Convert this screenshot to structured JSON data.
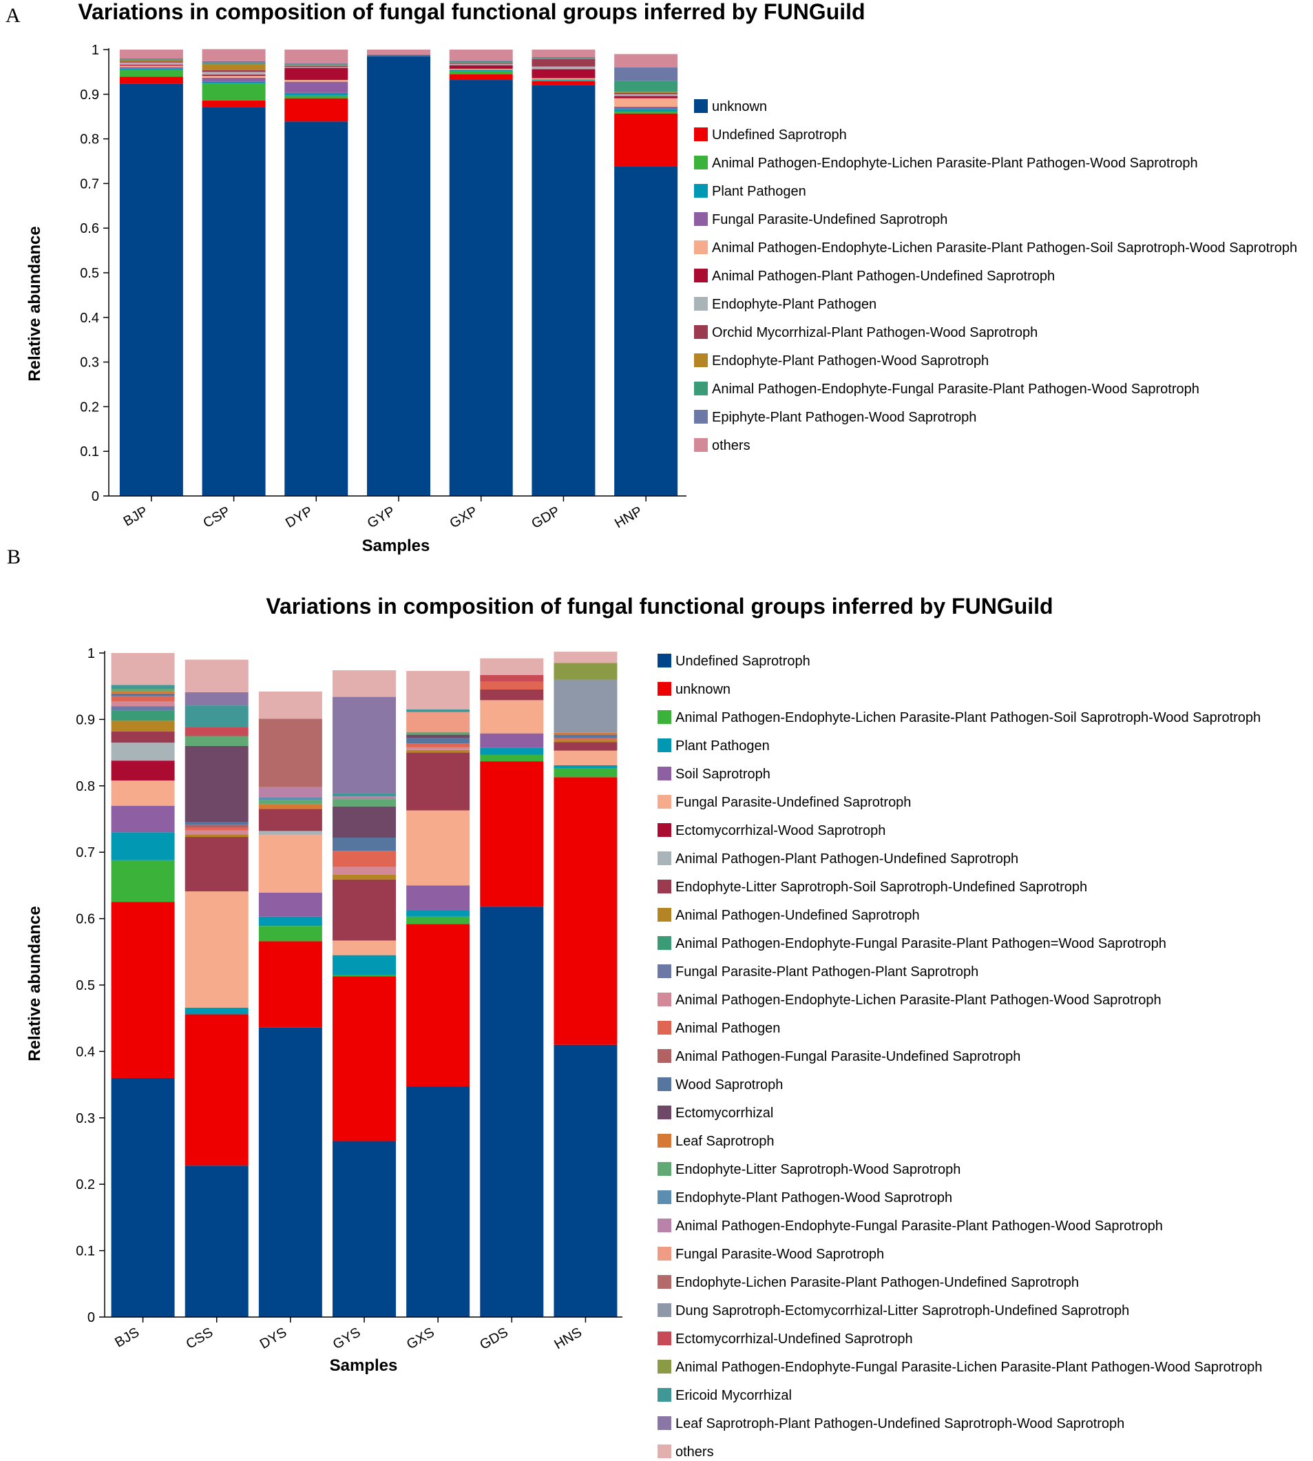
{
  "chart_data": [
    {
      "type": "bar",
      "stacked": true,
      "panel_label": "A",
      "title": "Variations in composition of fungal functional groups inferred by FUNGuild",
      "xlabel": "Samples",
      "ylabel": "Relative abundance",
      "ylim": [
        0,
        1
      ],
      "yticks": [
        "0",
        "0.1",
        "0.2",
        "0.3",
        "0.4",
        "0.5",
        "0.6",
        "0.7",
        "0.8",
        "0.9",
        "1"
      ],
      "categories": [
        "BJP",
        "CSP",
        "DYP",
        "GYP",
        "GXP",
        "GDP",
        "HNP"
      ],
      "legend_position": "right",
      "series": [
        {
          "name": "unknown",
          "color": "#00448a",
          "values": [
            0.924,
            0.871,
            0.839,
            0.985,
            0.932,
            0.921,
            0.739
          ]
        },
        {
          "name": "Undefined Saprotroph",
          "color": "#ee0000",
          "values": [
            0.015,
            0.015,
            0.052,
            0.0,
            0.013,
            0.008,
            0.118
          ]
        },
        {
          "name": "Animal Pathogen-Endophyte-Lichen Parasite-Plant Pathogen-Wood Saprotroph",
          "color": "#3bb33b",
          "values": [
            0.015,
            0.038,
            0.006,
            0.0,
            0.006,
            0.002,
            0.004
          ]
        },
        {
          "name": "Plant Pathogen",
          "color": "#0098b3",
          "values": [
            0.004,
            0.004,
            0.006,
            0.002,
            0.003,
            0.002,
            0.006
          ]
        },
        {
          "name": "Fungal Parasite-Undefined Saprotroph",
          "color": "#8e5fa2",
          "values": [
            0.003,
            0.009,
            0.025,
            0.0,
            0.001,
            0.0,
            0.005
          ]
        },
        {
          "name": "Animal Pathogen-Endophyte-Lichen Parasite-Plant Pathogen-Soil Saprotroph-Wood Saprotroph",
          "color": "#f6ac8c",
          "values": [
            0.003,
            0.004,
            0.004,
            0.0,
            0.002,
            0.003,
            0.019
          ]
        },
        {
          "name": "Animal Pathogen-Plant Pathogen-Undefined Saprotroph",
          "color": "#ab0a31",
          "values": [
            0.002,
            0.003,
            0.027,
            0.001,
            0.008,
            0.02,
            0.005
          ]
        },
        {
          "name": "Endophyte-Plant Pathogen",
          "color": "#a9b4b8",
          "values": [
            0.005,
            0.006,
            0.002,
            0.0,
            0.003,
            0.006,
            0.004
          ]
        },
        {
          "name": "Orchid Mycorrhizal-Plant Pathogen-Wood Saprotroph",
          "color": "#9c3a50",
          "values": [
            0.002,
            0.004,
            0.002,
            0.0,
            0.002,
            0.017,
            0.003
          ]
        },
        {
          "name": "Endophyte-Plant Pathogen-Wood Saprotroph",
          "color": "#b58423",
          "values": [
            0.003,
            0.014,
            0.002,
            0.0,
            0.001,
            0.001,
            0.003
          ]
        },
        {
          "name": "Animal Pathogen-Endophyte-Fungal Parasite-Plant Pathogen-Wood Saprotroph",
          "color": "#3a9b77",
          "values": [
            0.002,
            0.003,
            0.002,
            0.0,
            0.002,
            0.001,
            0.024
          ]
        },
        {
          "name": "Epiphyte-Plant Pathogen-Wood Saprotroph",
          "color": "#6c79a6",
          "values": [
            0.002,
            0.003,
            0.002,
            0.001,
            0.002,
            0.002,
            0.03
          ]
        },
        {
          "name": "others",
          "color": "#d48999",
          "values": [
            0.02,
            0.027,
            0.031,
            0.011,
            0.025,
            0.017,
            0.03
          ]
        }
      ]
    },
    {
      "type": "bar",
      "stacked": true,
      "panel_label": "B",
      "title": "Variations in composition of fungal functional groups inferred by FUNGuild",
      "xlabel": "Samples",
      "ylabel": "Relative abundance",
      "ylim": [
        0,
        1
      ],
      "yticks": [
        "0",
        "0.1",
        "0.2",
        "0.3",
        "0.4",
        "0.5",
        "0.6",
        "0.7",
        "0.8",
        "0.9",
        "1"
      ],
      "categories": [
        "BJS",
        "CSS",
        "DYS",
        "GYS",
        "GXS",
        "GDS",
        "HNS"
      ],
      "legend_position": "right",
      "series": [
        {
          "name": "Undefined Saprotroph",
          "color": "#00448a",
          "values": [
            0.36,
            0.228,
            0.436,
            0.265,
            0.347,
            0.618,
            0.41
          ]
        },
        {
          "name": "unknown",
          "color": "#ee0000",
          "values": [
            0.265,
            0.228,
            0.13,
            0.248,
            0.245,
            0.219,
            0.403
          ]
        },
        {
          "name": "Animal Pathogen-Endophyte-Lichen Parasite-Plant Pathogen-Soil Saprotroph-Wood Saprotroph",
          "color": "#3bb33b",
          "values": [
            0.063,
            0.0,
            0.023,
            0.002,
            0.011,
            0.01,
            0.013
          ]
        },
        {
          "name": "Plant Pathogen",
          "color": "#0098b3",
          "values": [
            0.042,
            0.01,
            0.014,
            0.03,
            0.01,
            0.01,
            0.005
          ]
        },
        {
          "name": "Soil Saprotroph",
          "color": "#8e5fa2",
          "values": [
            0.04,
            0.0,
            0.036,
            0.0,
            0.037,
            0.022,
            0.0
          ]
        },
        {
          "name": "Fungal Parasite-Undefined Saprotroph",
          "color": "#f6ac8c",
          "values": [
            0.038,
            0.175,
            0.087,
            0.022,
            0.113,
            0.05,
            0.022
          ]
        },
        {
          "name": "Ectomycorrhizal-Wood Saprotroph",
          "color": "#ab0a31",
          "values": [
            0.03,
            0.0,
            0.0,
            0.0,
            0.0,
            0.0,
            0.0
          ]
        },
        {
          "name": "Animal Pathogen-Plant Pathogen-Undefined Saprotroph",
          "color": "#a9b4b8",
          "values": [
            0.027,
            0.0,
            0.006,
            0.0,
            0.0,
            0.0,
            0.0
          ]
        },
        {
          "name": "Endophyte-Litter Saprotroph-Soil Saprotroph-Undefined Saprotroph",
          "color": "#9c3a50",
          "values": [
            0.017,
            0.082,
            0.033,
            0.092,
            0.087,
            0.016,
            0.013
          ]
        },
        {
          "name": "Animal Pathogen-Undefined Saprotroph",
          "color": "#b58423",
          "values": [
            0.016,
            0.004,
            0.0,
            0.007,
            0.004,
            0.0,
            0.003
          ]
        },
        {
          "name": "Animal Pathogen-Endophyte-Fungal Parasite-Plant Pathogen=Wood Saprotroph",
          "color": "#3a9b77",
          "values": [
            0.015,
            0.0,
            0.0,
            0.0,
            0.0,
            0.0,
            0.0
          ]
        },
        {
          "name": "Fungal Parasite-Plant Pathogen-Plant Saprotroph",
          "color": "#6c79a6",
          "values": [
            0.007,
            0.0,
            0.0,
            0.0,
            0.0,
            0.0,
            0.0
          ]
        },
        {
          "name": "Animal Pathogen-Endophyte-Lichen Parasite-Plant Pathogen-Wood Saprotroph",
          "color": "#d48999",
          "values": [
            0.007,
            0.006,
            0.0,
            0.012,
            0.004,
            0.0,
            0.0
          ]
        },
        {
          "name": "Animal Pathogen",
          "color": "#e06653",
          "values": [
            0.008,
            0.004,
            0.0,
            0.024,
            0.006,
            0.012,
            0.003
          ]
        },
        {
          "name": "Animal Pathogen-Fungal Parasite-Undefined Saprotroph",
          "color": "#b36264",
          "values": [
            0.0,
            0.004,
            0.0,
            0.0,
            0.0,
            0.0,
            0.0
          ]
        },
        {
          "name": "Wood Saprotroph",
          "color": "#56759f",
          "values": [
            0.004,
            0.004,
            0.0,
            0.02,
            0.008,
            0.0,
            0.005
          ]
        },
        {
          "name": "Ectomycorrhizal",
          "color": "#6f4867",
          "values": [
            0.0,
            0.115,
            0.0,
            0.047,
            0.005,
            0.0,
            0.0
          ]
        },
        {
          "name": "Leaf Saprotroph",
          "color": "#d87835",
          "values": [
            0.003,
            0.0,
            0.007,
            0.0,
            0.0,
            0.0,
            0.003
          ]
        },
        {
          "name": "Endophyte-Litter Saprotroph-Wood Saprotroph",
          "color": "#60a874",
          "values": [
            0.004,
            0.015,
            0.007,
            0.011,
            0.004,
            0.0,
            0.0
          ]
        },
        {
          "name": "Endophyte-Plant Pathogen-Wood Saprotroph",
          "color": "#5b8eb0",
          "values": [
            0.0,
            0.0,
            0.004,
            0.0,
            0.0,
            0.0,
            0.0
          ]
        },
        {
          "name": "Animal Pathogen-Endophyte-Fungal Parasite-Plant Pathogen-Wood Saprotroph",
          "color": "#b982a8",
          "values": [
            0.0,
            0.0,
            0.015,
            0.004,
            0.0,
            0.0,
            0.0
          ]
        },
        {
          "name": "Fungal Parasite-Wood Saprotroph",
          "color": "#f09c85",
          "values": [
            0.0,
            0.0,
            0.0,
            0.0,
            0.03,
            0.0,
            0.0
          ]
        },
        {
          "name": "Endophyte-Lichen Parasite-Plant Pathogen-Undefined Saprotroph",
          "color": "#b56a6a",
          "values": [
            0.0,
            0.0,
            0.103,
            0.0,
            0.0,
            0.0,
            0.0
          ]
        },
        {
          "name": "Dung Saprotroph-Ectomycorrhizal-Litter Saprotroph-Undefined Saprotroph",
          "color": "#8e98a8",
          "values": [
            0.0,
            0.0,
            0.0,
            0.0,
            0.0,
            0.0,
            0.08
          ]
        },
        {
          "name": "Ectomycorrhizal-Undefined Saprotroph",
          "color": "#c94a57",
          "values": [
            0.0,
            0.013,
            0.0,
            0.0,
            0.0,
            0.01,
            0.0
          ]
        },
        {
          "name": "Animal Pathogen-Endophyte-Fungal Parasite-Lichen Parasite-Plant Pathogen-Wood Saprotroph",
          "color": "#8a9a45",
          "values": [
            0.0,
            0.0,
            0.0,
            0.0,
            0.0,
            0.0,
            0.025
          ]
        },
        {
          "name": "Ericoid Mycorrhizal",
          "color": "#3f9896",
          "values": [
            0.006,
            0.033,
            0.0,
            0.005,
            0.004,
            0.0,
            0.0
          ]
        },
        {
          "name": "Leaf Saprotroph-Plant Pathogen-Undefined Saprotroph-Wood Saprotroph",
          "color": "#8b77a6",
          "values": [
            0.0,
            0.02,
            0.0,
            0.145,
            0.0,
            0.0,
            0.0
          ]
        },
        {
          "name": "others",
          "color": "#e3aeae",
          "values": [
            0.048,
            0.049,
            0.041,
            0.04,
            0.058,
            0.025,
            0.017
          ]
        }
      ]
    }
  ]
}
